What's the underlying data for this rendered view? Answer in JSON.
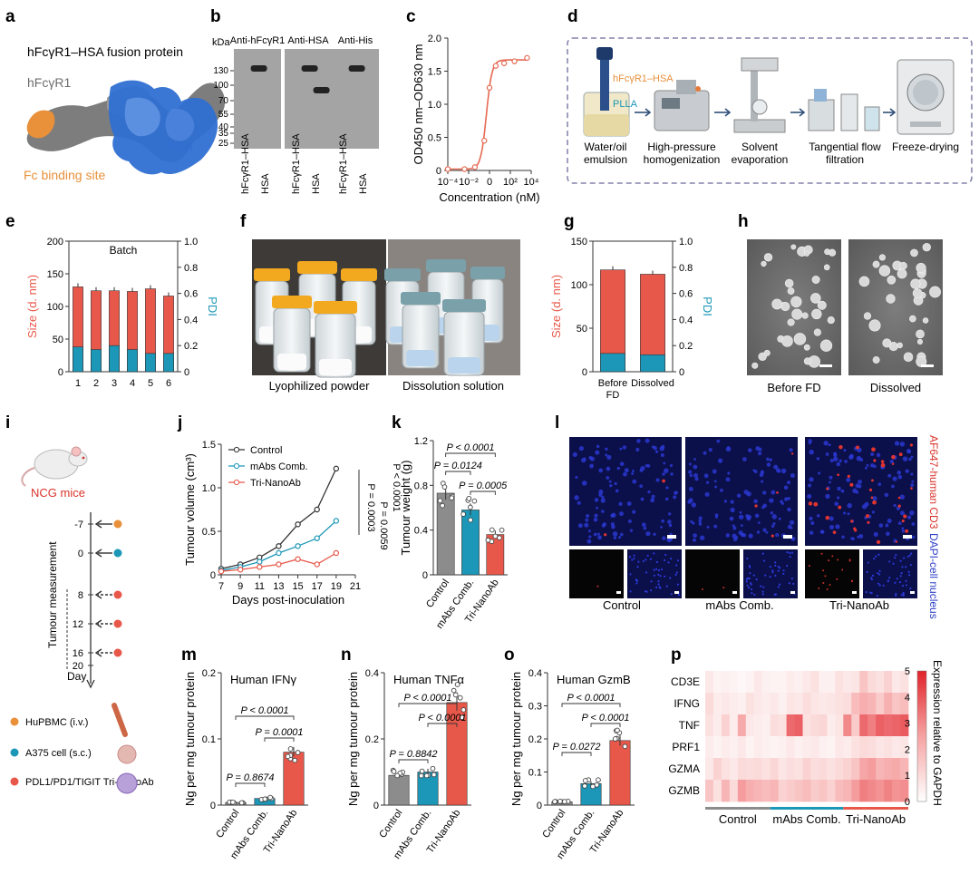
{
  "panel_labels": [
    "a",
    "b",
    "c",
    "d",
    "e",
    "f",
    "g",
    "h",
    "i",
    "j",
    "k",
    "l",
    "m",
    "n",
    "o",
    "p"
  ],
  "colors": {
    "red": "#e8584a",
    "red_line": "#e56a52",
    "teal": "#1c97b7",
    "blue": "#2f6fd1",
    "orange": "#e8903a",
    "grey": "#8c8c8c",
    "dark": "#333333",
    "dashed": "#6b6b9a"
  },
  "panel_a": {
    "title": "hFcγR1–HSA fusion protein",
    "label_fcr": "hFcγR1",
    "label_fc": "Fc binding site",
    "label_hsa": "HSA"
  },
  "panel_b": {
    "kda": "kDa",
    "markers": [
      "130",
      "100",
      "70",
      "55",
      "40",
      "35",
      "25"
    ],
    "blots": [
      "Anti-hFcγR1",
      "Anti-HSA",
      "Anti-His"
    ],
    "lane_labels": [
      "hFcγR1–HSA",
      "HSA"
    ]
  },
  "chart_data": [
    {
      "id": "c",
      "type": "line",
      "title": "",
      "xlabel": "Concentration (nM)",
      "ylabel": "OD450 nm–OD630 nm",
      "xticks": [
        "10⁻⁴",
        "10⁻²",
        "0",
        "10²",
        "10⁴"
      ],
      "yticks": [
        "0",
        "0.5",
        "1.0",
        "1.5",
        "2.0"
      ],
      "ylim": [
        0,
        2.0
      ],
      "x_log10": [
        -4,
        -3,
        -2,
        -1,
        0,
        1,
        2,
        3,
        4
      ],
      "x": [
        -4,
        -2.4,
        -1.4,
        -0.5,
        0,
        0.6,
        1.4,
        2.4,
        3.6
      ],
      "y": [
        0.02,
        0.02,
        0.05,
        0.45,
        1.25,
        1.58,
        1.62,
        1.65,
        1.7
      ]
    },
    {
      "id": "e",
      "type": "bar",
      "title": "Batch",
      "categories": [
        "1",
        "2",
        "3",
        "4",
        "5",
        "6"
      ],
      "size": [
        130,
        124,
        124,
        123,
        127,
        116
      ],
      "pdi": [
        0.19,
        0.17,
        0.2,
        0.17,
        0.14,
        0.14
      ],
      "ylabel": "Size (d. nm)",
      "y2label": "PDI",
      "ylim": [
        0,
        200
      ],
      "y2lim": [
        0,
        1.0
      ],
      "yticks": [
        "0",
        "50",
        "100",
        "150",
        "200"
      ],
      "y2ticks": [
        "0",
        "0.2",
        "0.4",
        "0.6",
        "0.8",
        "1.0"
      ]
    },
    {
      "id": "g",
      "type": "bar",
      "categories": [
        "Before FD",
        "Dissolved"
      ],
      "size": [
        117,
        112
      ],
      "pdi": [
        0.14,
        0.13
      ],
      "ylabel": "Size (d. nm)",
      "y2label": "PDI",
      "ylim": [
        0,
        150
      ],
      "y2lim": [
        0,
        1.0
      ],
      "yticks": [
        "0",
        "50",
        "100",
        "150"
      ],
      "y2ticks": [
        "0",
        "0.2",
        "0.4",
        "0.6",
        "0.8",
        "1.0"
      ]
    },
    {
      "id": "j",
      "type": "line",
      "xlabel": "Days post-inoculation",
      "ylabel": "Tumour volume (cm³)",
      "x": [
        7,
        9,
        11,
        13,
        15,
        17,
        19
      ],
      "xticks": [
        "7",
        "9",
        "11",
        "13",
        "15",
        "17",
        "19",
        "21"
      ],
      "yticks": [
        "0",
        "0.5",
        "1.0",
        "1.5"
      ],
      "ylim": [
        0,
        1.5
      ],
      "series": [
        {
          "name": "Control",
          "values": [
            0.07,
            0.12,
            0.2,
            0.33,
            0.58,
            0.75,
            1.22
          ]
        },
        {
          "name": "mAbs Comb.",
          "values": [
            0.05,
            0.09,
            0.15,
            0.25,
            0.33,
            0.42,
            0.62
          ]
        },
        {
          "name": "Tri-NanoAb",
          "values": [
            0.04,
            0.06,
            0.09,
            0.12,
            0.18,
            0.12,
            0.25
          ]
        }
      ],
      "stats": [
        "P = 0.0003",
        "P = 0.0059",
        "P < 0.0001"
      ]
    },
    {
      "id": "k",
      "type": "bar",
      "categories": [
        "Control",
        "mAbs Comb.",
        "Tri-NanoAb"
      ],
      "values": [
        0.73,
        0.58,
        0.36
      ],
      "ylabel": "Tumour weight (g)",
      "yticks": [
        "0",
        "0.4",
        "0.8",
        "1.2"
      ],
      "ylim": [
        0,
        1.2
      ],
      "stats": [
        "P < 0.0001",
        "P = 0.0124",
        "P = 0.0005"
      ]
    },
    {
      "id": "m",
      "type": "bar",
      "title": "Human IFNγ",
      "categories": [
        "Control",
        "mAbs Comb.",
        "Tri-NanoAb"
      ],
      "values": [
        0.004,
        0.01,
        0.08
      ],
      "ylabel": "Ng per mg tumour protein",
      "yticks": [
        "0",
        "0.1",
        "0.2"
      ],
      "ylim": [
        0,
        0.2
      ],
      "stats": [
        "P = 0.8674",
        "P < 0.0001",
        "P = 0.0001"
      ]
    },
    {
      "id": "n",
      "type": "bar",
      "title": "Human TNFα",
      "categories": [
        "Control",
        "mAbs Comb.",
        "Tri-NanoAb"
      ],
      "values": [
        0.09,
        0.1,
        0.31
      ],
      "ylabel": "Ng per mg tumour protein",
      "yticks": [
        "0",
        "0.2",
        "0.4"
      ],
      "ylim": [
        0,
        0.4
      ],
      "stats": [
        "P = 0.8842",
        "P < 0.0001",
        "P < 0.0001"
      ]
    },
    {
      "id": "o",
      "type": "bar",
      "title": "Human GzmB",
      "categories": [
        "Control",
        "mAbs Comb.",
        "Tri-NanoAb"
      ],
      "values": [
        0.01,
        0.065,
        0.195
      ],
      "ylabel": "Ng per mg tumour protein",
      "yticks": [
        "0",
        "0.1",
        "0.2",
        "0.3",
        "0.4"
      ],
      "ylim": [
        0,
        0.4
      ],
      "stats": [
        "P = 0.0272",
        "P < 0.0001",
        "P < 0.0001"
      ]
    },
    {
      "id": "p",
      "type": "heatmap",
      "rows": [
        "CD3E",
        "IFNG",
        "TNF",
        "PRF1",
        "GZMA",
        "GZMB"
      ],
      "groups": [
        "Control",
        "mAbs Comb.",
        "Tri-NanoAb"
      ],
      "colorbar_label": "Expression relative to GAPDH",
      "colorbar_ticks": [
        "0",
        "1",
        "2",
        "3",
        "4",
        "5"
      ],
      "values": [
        [
          0.6,
          0.3,
          0.4,
          0.3,
          0.2,
          0.3,
          0.6,
          0.4,
          0.3,
          0.3,
          0.5,
          0.4,
          0.6,
          0.8,
          0.4,
          0.4,
          0.8,
          0.6,
          0.7,
          1.6,
          1.0,
          0.8,
          1.2,
          0.6,
          0.8
        ],
        [
          1.0,
          0.5,
          0.6,
          0.5,
          0.4,
          0.8,
          0.6,
          0.5,
          0.6,
          0.4,
          0.7,
          0.6,
          0.9,
          0.7,
          0.6,
          0.7,
          0.8,
          0.9,
          1.8,
          2.2,
          2.0,
          1.4,
          2.1,
          1.6,
          1.8
        ],
        [
          0.8,
          0.5,
          1.2,
          0.5,
          2.3,
          0.6,
          0.5,
          0.4,
          0.9,
          0.8,
          3.6,
          3.8,
          0.8,
          1.0,
          1.1,
          0.5,
          0.7,
          3.0,
          1.4,
          3.6,
          3.2,
          3.8,
          3.6,
          3.7,
          3.9
        ],
        [
          0.5,
          0.3,
          0.5,
          0.4,
          0.6,
          0.3,
          0.5,
          0.4,
          0.3,
          0.4,
          0.6,
          0.4,
          0.5,
          0.6,
          0.4,
          0.3,
          0.6,
          0.5,
          0.8,
          1.0,
          0.9,
          0.7,
          0.8,
          0.6,
          0.7
        ],
        [
          0.6,
          1.2,
          0.8,
          0.6,
          1.0,
          0.9,
          1.0,
          0.8,
          1.1,
          0.7,
          0.9,
          0.8,
          1.2,
          0.9,
          1.0,
          0.8,
          1.0,
          1.2,
          1.6,
          2.4,
          2.6,
          2.0,
          2.2,
          2.3,
          2.0
        ],
        [
          1.6,
          0.8,
          2.0,
          1.0,
          2.6,
          2.2,
          2.0,
          1.8,
          2.0,
          1.2,
          1.4,
          1.6,
          1.8,
          1.4,
          1.6,
          1.2,
          1.8,
          2.0,
          2.6,
          3.2,
          3.0,
          2.8,
          3.1,
          2.8,
          2.9
        ]
      ]
    }
  ],
  "panel_d": {
    "steps": [
      "Water/oil emulsion",
      "High-pressure homogenization",
      "Solvent evaporation",
      "Tangential flow filtration",
      "Freeze-drying"
    ],
    "label_fcr": "hFcγR1–HSA",
    "label_plla": "PLLA"
  },
  "panel_f": {
    "captions": [
      "Lyophilized powder",
      "Dissolution solution"
    ]
  },
  "panel_h": {
    "captions": [
      "Before FD",
      "Dissolved"
    ]
  },
  "panel_i": {
    "mice": "NCG mice",
    "days": [
      "-7",
      "0",
      "8",
      "12",
      "16",
      "20"
    ],
    "axis_label": "Tumour measurement",
    "day_label": "Day",
    "legend": [
      "HuPBMC (i.v.)",
      "A375 cell (s.c.)",
      "PDL1/PD1/TIGIT Tri-NanoAb"
    ]
  },
  "panel_l": {
    "columns": [
      "Control",
      "mAbs Comb.",
      "Tri-NanoAb"
    ],
    "label_cd3": "AF647-human CD3",
    "label_dapi": "DAPI-cell nucleus"
  }
}
